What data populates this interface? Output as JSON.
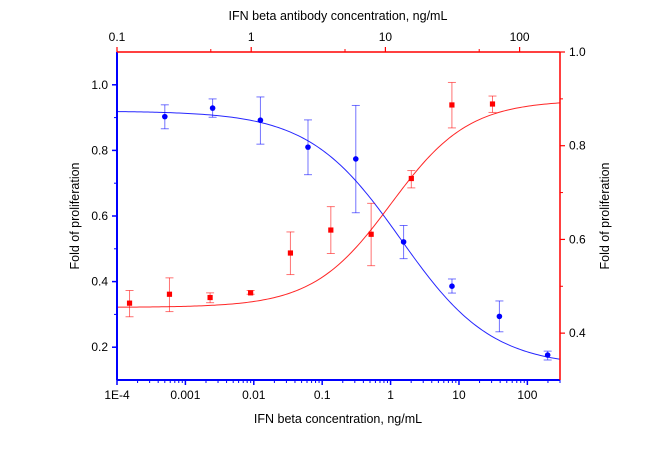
{
  "chart_data": {
    "type": "scatter",
    "colors": {
      "blue": "#0000ff",
      "red": "#ff0000"
    },
    "grid": false,
    "legend": "none",
    "axes": {
      "bottom": {
        "label": "IFN beta concentration, ng/mL",
        "scale": "log",
        "range": [
          0.0001,
          300
        ],
        "ticks": [
          "1E-4",
          "0.001",
          "0.01",
          "0.1",
          "1",
          "10",
          "100"
        ],
        "tick_values": [
          0.0001,
          0.001,
          0.01,
          0.1,
          1,
          10,
          100
        ],
        "color": "#0000ff"
      },
      "top": {
        "label": "IFN beta antibody concentration, ng/mL",
        "scale": "log",
        "range": [
          0.1,
          200
        ],
        "ticks": [
          "0.1",
          "1",
          "10",
          "100"
        ],
        "tick_values": [
          0.1,
          1,
          10,
          100
        ],
        "color": "#ff0000"
      },
      "left": {
        "label": "Fold of proliferation",
        "range": [
          0.1,
          1.1
        ],
        "ticks": [
          "0.2",
          "0.4",
          "0.6",
          "0.8",
          "1.0"
        ],
        "tick_values": [
          0.2,
          0.4,
          0.6,
          0.8,
          1.0
        ],
        "color": "#0000ff"
      },
      "right": {
        "label": "Fold of proliferation",
        "range": [
          0.3,
          1.0
        ],
        "ticks": [
          "0.4",
          "0.6",
          "0.8",
          "1.0"
        ],
        "tick_values": [
          0.4,
          0.6,
          0.8,
          1.0
        ],
        "color": "#ff0000"
      }
    },
    "series": [
      {
        "color": "#0000ff",
        "marker": "circle",
        "x_axis": "bottom",
        "y_axis": "left",
        "x": [
          0.0005,
          0.0025,
          0.0125,
          0.062,
          0.31,
          1.55,
          7.9,
          39,
          198
        ],
        "y": [
          0.903,
          0.929,
          0.892,
          0.81,
          0.774,
          0.521,
          0.386,
          0.294,
          0.176
        ],
        "err_high": [
          0.939,
          0.957,
          0.963,
          0.893,
          0.937,
          0.571,
          0.408,
          0.341,
          0.188
        ],
        "err_low": [
          0.866,
          0.901,
          0.819,
          0.726,
          0.61,
          0.47,
          0.365,
          0.247,
          0.161
        ],
        "fit": {
          "model": "4PL",
          "top": 0.92,
          "bottom": 0.14,
          "ec50": 1.4,
          "hill": 0.65,
          "direction": "decreasing"
        }
      },
      {
        "color": "#ff0000",
        "marker": "square",
        "x_axis": "top",
        "y_axis": "right",
        "x": [
          0.124,
          0.246,
          0.494,
          0.99,
          1.96,
          3.92,
          7.83,
          15.6,
          31.3,
          62.8
        ],
        "y": [
          0.464,
          0.483,
          0.476,
          0.486,
          0.571,
          0.62,
          0.611,
          0.73,
          0.887,
          0.889
        ],
        "err_high": [
          0.491,
          0.518,
          0.486,
          0.491,
          0.616,
          0.67,
          0.677,
          0.747,
          0.935,
          0.906
        ],
        "err_low": [
          0.435,
          0.446,
          0.465,
          0.483,
          0.525,
          0.57,
          0.544,
          0.71,
          0.838,
          0.871
        ],
        "fit": {
          "model": "4PL",
          "top": 0.897,
          "bottom": 0.455,
          "ec50": 11,
          "hill": 1.5,
          "direction": "increasing"
        }
      }
    ]
  }
}
